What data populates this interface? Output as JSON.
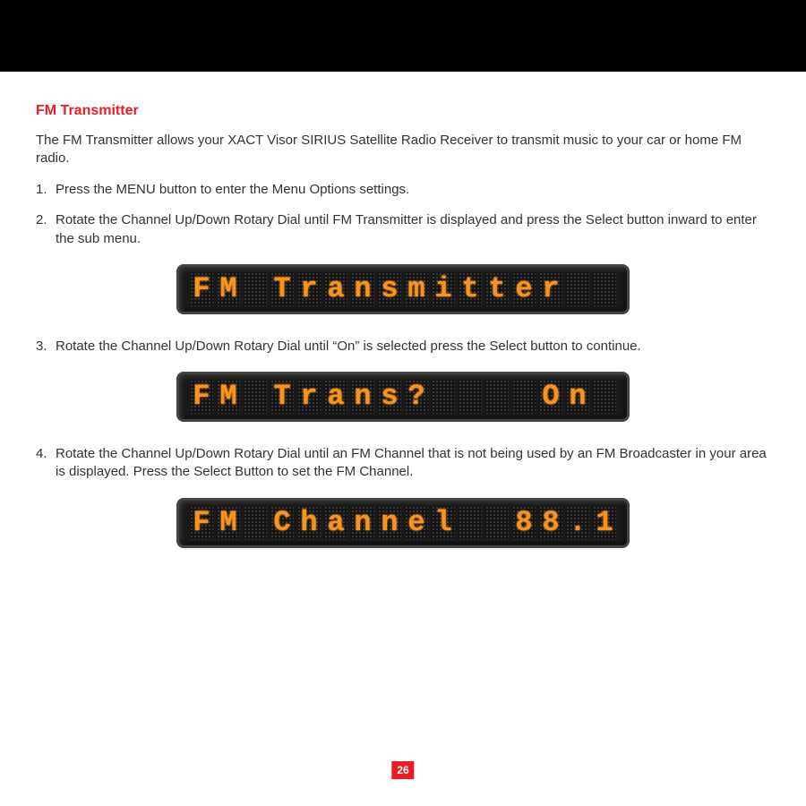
{
  "page": {
    "number": "26",
    "title": "FM Transmitter",
    "intro": "The FM Transmitter allows your XACT Visor SIRIUS Satellite Radio Receiver to transmit music to your car or home FM radio.",
    "steps": [
      "Press the MENU button to enter the Menu Options settings.",
      "Rotate the Channel Up/Down Rotary Dial until FM Transmitter is displayed and press the Select button inward to enter the sub menu.",
      "Rotate the Channel Up/Down Rotary Dial until “On” is selected press the Select button to continue.",
      "Rotate the Channel Up/Down Rotary Dial until an FM Channel that is not being used by an FM Broadcaster in your area is displayed. Press the Select Button to set the FM Channel."
    ]
  },
  "displays": {
    "d1": {
      "text": "FM Transmitter  ",
      "cells": 16
    },
    "d2": {
      "text": "FM Trans?    On ",
      "cells": 16
    },
    "d3": {
      "text": "FM Channel  88.1",
      "cells": 16
    }
  },
  "style": {
    "title_color": "#ec1c24",
    "lcd_fg": "#f7931e",
    "lcd_bg": "#1a1a1a",
    "lcd_dot": "#3a3a3a",
    "lcd_cell_w": 26,
    "lcd_cell_h": 38,
    "lcd_font_size": 32,
    "body_font_size": 15,
    "title_font_size": 16,
    "pagenum_bg": "#ec1c24",
    "pagenum_color": "#ffffff"
  }
}
